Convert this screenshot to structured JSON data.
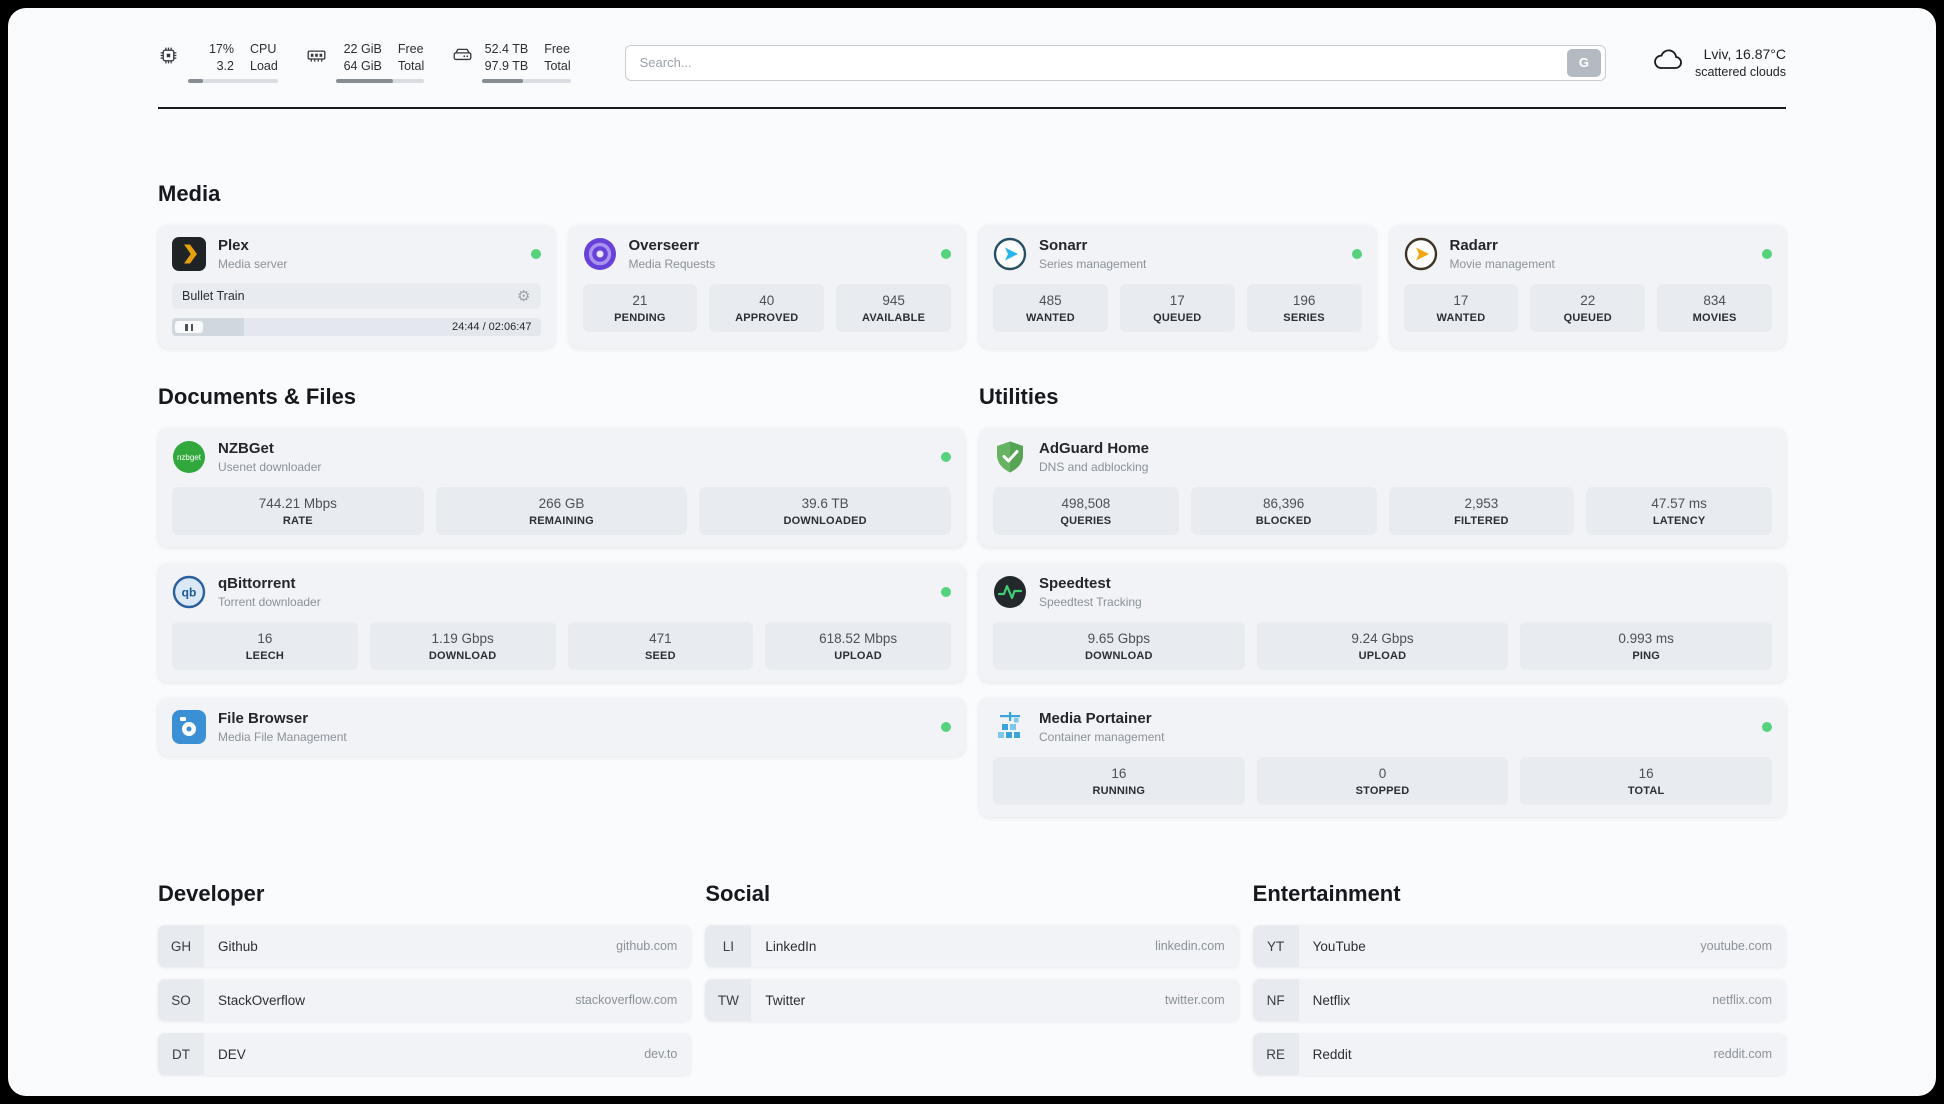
{
  "colors": {
    "status_online": "#56d27c",
    "accent_plex": "#e5a00d",
    "accent_sonarr": "#29b6e8",
    "accent_radarr": "#f5a712",
    "accent_green": "#31a83c"
  },
  "header": {
    "cpu": {
      "value_top": "17%",
      "value_bottom": "3.2",
      "label_top": "CPU",
      "label_bottom": "Load",
      "percent": 17
    },
    "ram": {
      "value_top": "22 GiB",
      "value_bottom": "64 GiB",
      "label_top": "Free",
      "label_bottom": "Total",
      "percent": 65
    },
    "disk": {
      "value_top": "52.4 TB",
      "value_bottom": "97.9 TB",
      "label_top": "Free",
      "label_bottom": "Total",
      "percent": 46
    },
    "search": {
      "placeholder": "Search...",
      "engine_button": "G"
    },
    "weather": {
      "location": "Lviv, 16.87°C",
      "condition": "scattered clouds"
    }
  },
  "sections": {
    "media": "Media",
    "documents": "Documents & Files",
    "utilities": "Utilities",
    "developer": "Developer",
    "social": "Social",
    "entertainment": "Entertainment"
  },
  "media": {
    "plex": {
      "title": "Plex",
      "subtitle": "Media server",
      "now_playing": "Bullet Train",
      "time": "24:44 / 02:06:47",
      "progress_percent": 19.5
    },
    "overseerr": {
      "title": "Overseerr",
      "subtitle": "Media Requests",
      "stats": [
        {
          "value": "21",
          "label": "PENDING"
        },
        {
          "value": "40",
          "label": "APPROVED"
        },
        {
          "value": "945",
          "label": "AVAILABLE"
        }
      ]
    },
    "sonarr": {
      "title": "Sonarr",
      "subtitle": "Series management",
      "stats": [
        {
          "value": "485",
          "label": "WANTED"
        },
        {
          "value": "17",
          "label": "QUEUED"
        },
        {
          "value": "196",
          "label": "SERIES"
        }
      ]
    },
    "radarr": {
      "title": "Radarr",
      "subtitle": "Movie management",
      "stats": [
        {
          "value": "17",
          "label": "WANTED"
        },
        {
          "value": "22",
          "label": "QUEUED"
        },
        {
          "value": "834",
          "label": "MOVIES"
        }
      ]
    }
  },
  "documents": {
    "nzbget": {
      "title": "NZBGet",
      "subtitle": "Usenet downloader",
      "stats": [
        {
          "value": "744.21 Mbps",
          "label": "RATE"
        },
        {
          "value": "266 GB",
          "label": "REMAINING"
        },
        {
          "value": "39.6 TB",
          "label": "DOWNLOADED"
        }
      ]
    },
    "qbittorrent": {
      "title": "qBittorrent",
      "subtitle": "Torrent downloader",
      "stats": [
        {
          "value": "16",
          "label": "LEECH"
        },
        {
          "value": "1.19 Gbps",
          "label": "DOWNLOAD"
        },
        {
          "value": "471",
          "label": "SEED"
        },
        {
          "value": "618.52 Mbps",
          "label": "UPLOAD"
        }
      ]
    },
    "filebrowser": {
      "title": "File Browser",
      "subtitle": "Media File Management"
    }
  },
  "utilities": {
    "adguard": {
      "title": "AdGuard Home",
      "subtitle": "DNS and adblocking",
      "stats": [
        {
          "value": "498,508",
          "label": "QUERIES"
        },
        {
          "value": "86,396",
          "label": "BLOCKED"
        },
        {
          "value": "2,953",
          "label": "FILTERED"
        },
        {
          "value": "47.57 ms",
          "label": "LATENCY"
        }
      ]
    },
    "speedtest": {
      "title": "Speedtest",
      "subtitle": "Speedtest Tracking",
      "stats": [
        {
          "value": "9.65 Gbps",
          "label": "DOWNLOAD"
        },
        {
          "value": "9.24 Gbps",
          "label": "UPLOAD"
        },
        {
          "value": "0.993 ms",
          "label": "PING"
        }
      ]
    },
    "portainer": {
      "title": "Media Portainer",
      "subtitle": "Container management",
      "stats": [
        {
          "value": "16",
          "label": "RUNNING"
        },
        {
          "value": "0",
          "label": "STOPPED"
        },
        {
          "value": "16",
          "label": "TOTAL"
        }
      ]
    }
  },
  "links": {
    "developer": [
      {
        "abbr": "GH",
        "name": "Github",
        "url": "github.com"
      },
      {
        "abbr": "SO",
        "name": "StackOverflow",
        "url": "stackoverflow.com"
      },
      {
        "abbr": "DT",
        "name": "DEV",
        "url": "dev.to"
      }
    ],
    "social": [
      {
        "abbr": "LI",
        "name": "LinkedIn",
        "url": "linkedin.com"
      },
      {
        "abbr": "TW",
        "name": "Twitter",
        "url": "twitter.com"
      }
    ],
    "entertainment": [
      {
        "abbr": "YT",
        "name": "YouTube",
        "url": "youtube.com"
      },
      {
        "abbr": "NF",
        "name": "Netflix",
        "url": "netflix.com"
      },
      {
        "abbr": "RE",
        "name": "Reddit",
        "url": "reddit.com"
      }
    ]
  },
  "icons": {
    "nzbget_text": "nzbget",
    "qbittorrent_text": "qb",
    "gear": "⚙"
  }
}
